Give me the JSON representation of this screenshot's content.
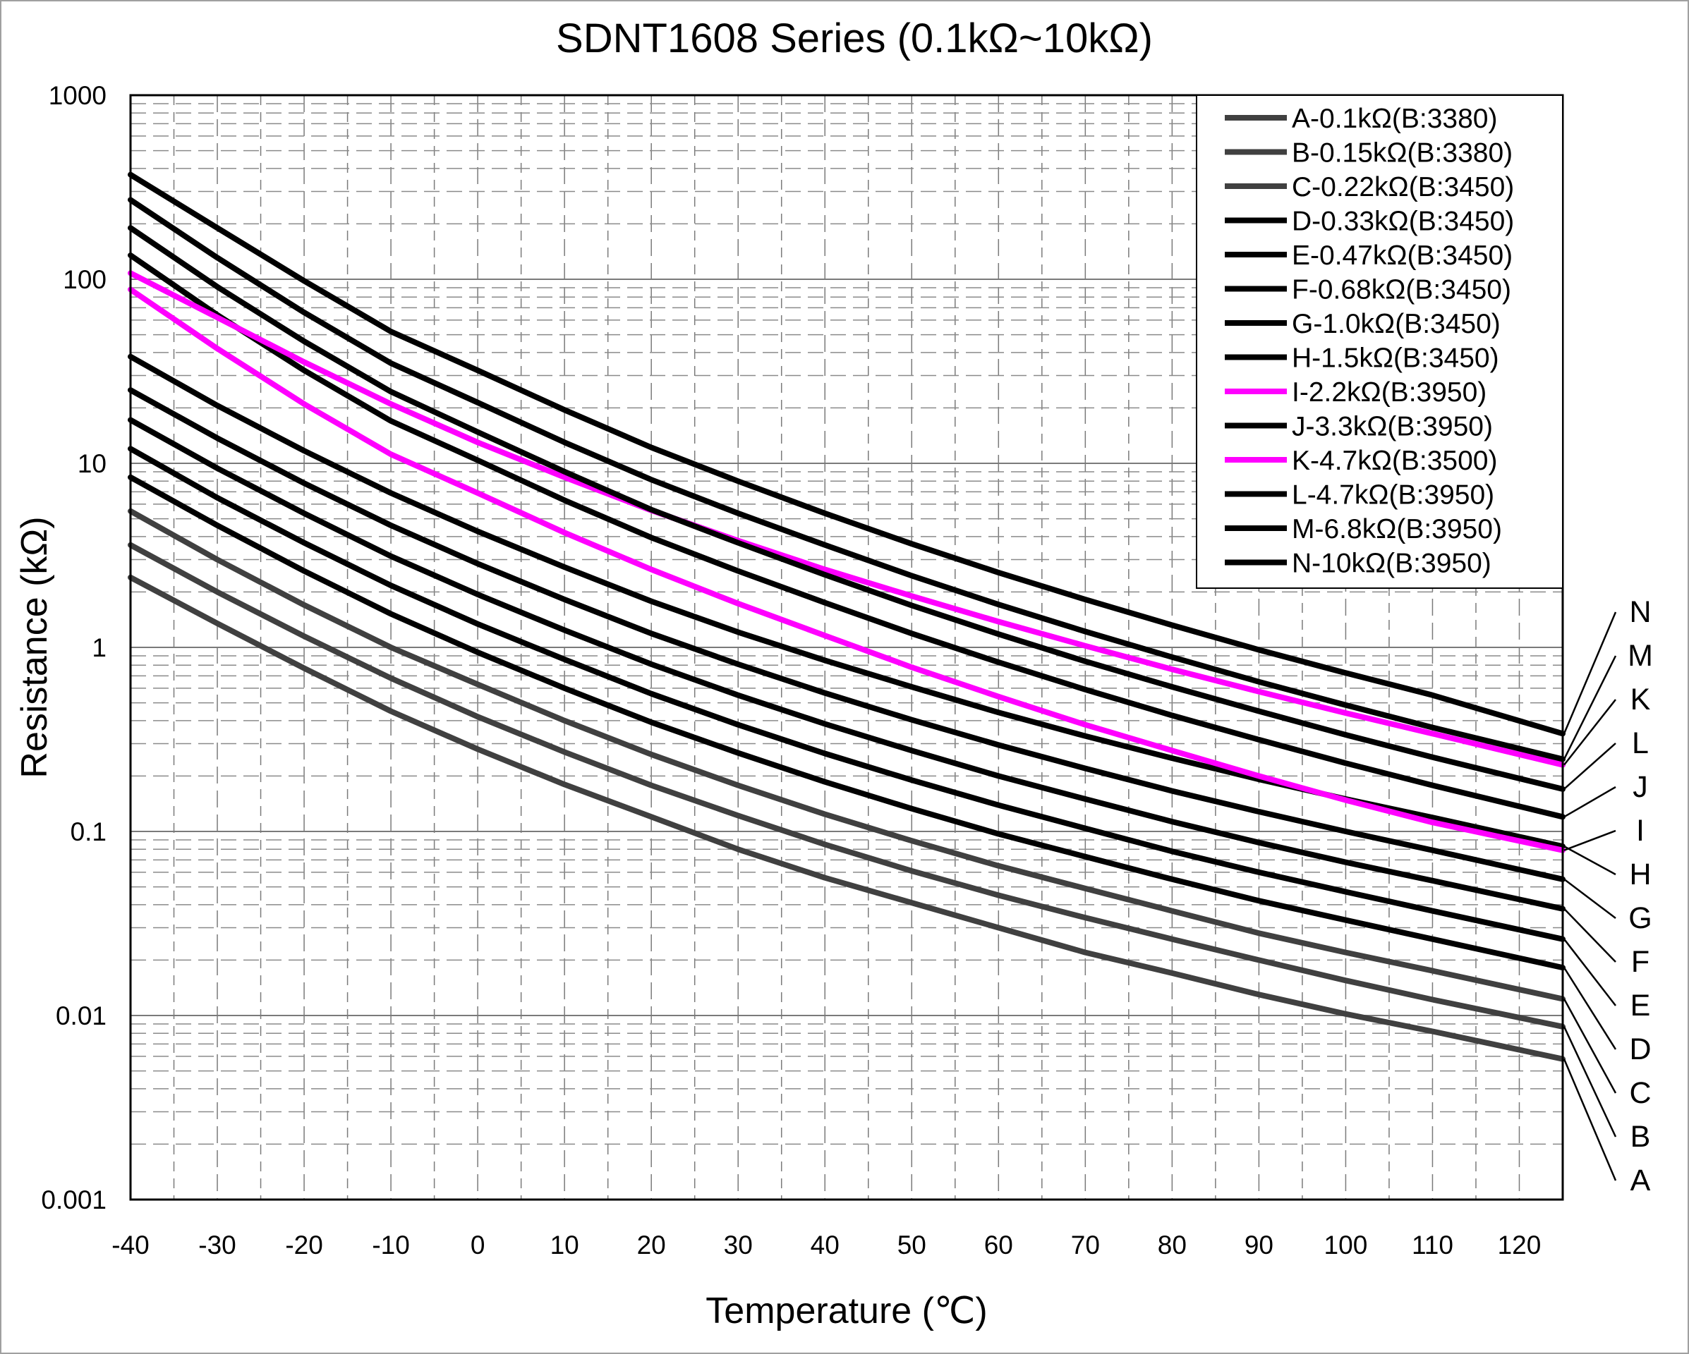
{
  "chart_data": {
    "type": "line",
    "title": "SDNT1608 Series (0.1kΩ~10kΩ)",
    "xlabel": "Temperature (℃)",
    "ylabel": "Resistance (kΩ)",
    "y_scale": "log",
    "xlim": [
      -40,
      125
    ],
    "ylim": [
      0.001,
      1000
    ],
    "x_ticks": [
      "-40",
      "-30",
      "-20",
      "-10",
      "0",
      "10",
      "20",
      "30",
      "40",
      "50",
      "60",
      "70",
      "80",
      "90",
      "100",
      "110",
      "120"
    ],
    "y_ticks": [
      "1000",
      "100",
      "10",
      "1",
      "0.1",
      "0.01",
      "0.001"
    ],
    "grid": true,
    "legend_position": "top-right",
    "x": [
      -40,
      -30,
      -20,
      -10,
      0,
      10,
      20,
      30,
      40,
      50,
      60,
      70,
      80,
      90,
      100,
      110,
      125
    ],
    "series": [
      {
        "name": "A-0.1kΩ(B:3380)",
        "label": "A",
        "color": "#404040",
        "values": [
          2.4,
          1.35,
          0.77,
          0.45,
          0.28,
          0.18,
          0.12,
          0.08,
          0.056,
          0.041,
          0.03,
          0.022,
          0.017,
          0.013,
          0.0102,
          0.0082,
          0.0058
        ]
      },
      {
        "name": "B-0.15kΩ(B:3380)",
        "label": "B",
        "color": "#404040",
        "values": [
          3.6,
          2.0,
          1.15,
          0.68,
          0.42,
          0.27,
          0.178,
          0.122,
          0.085,
          0.061,
          0.045,
          0.034,
          0.026,
          0.02,
          0.0155,
          0.0122,
          0.0087
        ]
      },
      {
        "name": "C-0.22kΩ(B:3450)",
        "label": "C",
        "color": "#404040",
        "values": [
          5.5,
          3.0,
          1.7,
          1.0,
          0.63,
          0.4,
          0.262,
          0.178,
          0.124,
          0.089,
          0.065,
          0.049,
          0.037,
          0.028,
          0.022,
          0.0175,
          0.0123
        ]
      },
      {
        "name": "D-0.33kΩ(B:3450)",
        "label": "D",
        "color": "#000000",
        "values": [
          8.4,
          4.6,
          2.6,
          1.52,
          0.94,
          0.6,
          0.392,
          0.267,
          0.186,
          0.133,
          0.097,
          0.073,
          0.055,
          0.042,
          0.033,
          0.026,
          0.0182
        ]
      },
      {
        "name": "E-0.47kΩ(B:3450)",
        "label": "E",
        "color": "#000000",
        "values": [
          12.0,
          6.5,
          3.7,
          2.17,
          1.34,
          0.86,
          0.56,
          0.38,
          0.265,
          0.19,
          0.139,
          0.104,
          0.078,
          0.06,
          0.047,
          0.037,
          0.026
        ]
      },
      {
        "name": "F-0.68kΩ(B:3450)",
        "label": "F",
        "color": "#000000",
        "values": [
          17.2,
          9.4,
          5.35,
          3.13,
          1.94,
          1.24,
          0.81,
          0.55,
          0.384,
          0.275,
          0.2,
          0.15,
          0.113,
          0.087,
          0.068,
          0.054,
          0.038
        ]
      },
      {
        "name": "G-1.0kΩ(B:3450)",
        "label": "G",
        "color": "#000000",
        "values": [
          25.0,
          13.7,
          7.8,
          4.6,
          2.85,
          1.82,
          1.19,
          0.81,
          0.565,
          0.404,
          0.295,
          0.22,
          0.166,
          0.128,
          0.1,
          0.079,
          0.055
        ]
      },
      {
        "name": "H-1.5kΩ(B:3450)",
        "label": "H",
        "color": "#000000",
        "values": [
          38.0,
          20.6,
          11.7,
          6.9,
          4.27,
          2.73,
          1.78,
          1.21,
          0.85,
          0.61,
          0.443,
          0.33,
          0.25,
          0.192,
          0.15,
          0.119,
          0.083
        ]
      },
      {
        "name": "I-2.2kΩ(B:3950)",
        "label": "I",
        "color": "#ff00ff",
        "values": [
          88.0,
          42.0,
          21.0,
          11.2,
          6.9,
          4.2,
          2.65,
          1.73,
          1.16,
          0.78,
          0.54,
          0.38,
          0.275,
          0.2,
          0.148,
          0.112,
          0.079
        ]
      },
      {
        "name": "J-3.3kΩ(B:3950)",
        "label": "J",
        "color": "#000000",
        "values": [
          135.0,
          64.0,
          32.0,
          17.0,
          10.4,
          6.3,
          3.95,
          2.6,
          1.75,
          1.19,
          0.83,
          0.59,
          0.427,
          0.315,
          0.235,
          0.178,
          0.12
        ]
      },
      {
        "name": "K-4.7kΩ(B:3500)",
        "label": "K",
        "color": "#ff00ff",
        "values": [
          108.0,
          62.0,
          35.5,
          21.0,
          13.0,
          8.4,
          5.55,
          3.8,
          2.65,
          1.9,
          1.38,
          1.02,
          0.76,
          0.575,
          0.44,
          0.34,
          0.23
        ]
      },
      {
        "name": "L-4.7kΩ(B:3950)",
        "label": "L",
        "color": "#000000",
        "values": [
          190.0,
          91.0,
          46.0,
          24.5,
          14.8,
          9.0,
          5.6,
          3.7,
          2.48,
          1.69,
          1.18,
          0.84,
          0.61,
          0.45,
          0.335,
          0.253,
          0.17
        ]
      },
      {
        "name": "M-6.8kΩ(B:3950)",
        "label": "M",
        "color": "#000000",
        "values": [
          270.0,
          131.0,
          66.0,
          35.0,
          21.4,
          13.0,
          8.15,
          5.35,
          3.6,
          2.45,
          1.71,
          1.22,
          0.885,
          0.65,
          0.486,
          0.367,
          0.247
        ]
      },
      {
        "name": "N-10kΩ(B:3950)",
        "label": "N",
        "color": "#000000",
        "values": [
          370.0,
          190.0,
          98.0,
          52.0,
          32.0,
          19.5,
          12.2,
          8.0,
          5.35,
          3.65,
          2.55,
          1.82,
          1.32,
          0.97,
          0.726,
          0.55,
          0.34
        ]
      }
    ]
  }
}
